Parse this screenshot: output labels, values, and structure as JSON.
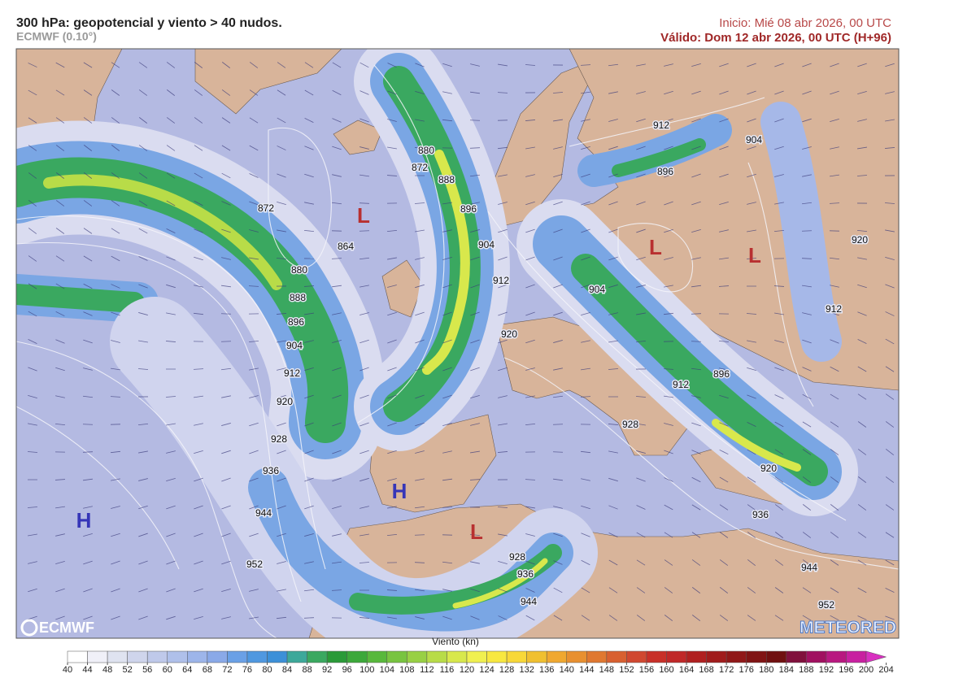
{
  "header": {
    "title": "300 hPa: geopotencial y viento > 40 nudos.",
    "model": "ECMWF (0.10°)",
    "init": "Inicio: Mié 08 abr 2026, 00 UTC",
    "valid": "Válido: Dom 12 abr 2026, 00 UTC (H+96)"
  },
  "map": {
    "pressure_centers": [
      "L",
      "L",
      "L",
      "L",
      "H",
      "H"
    ],
    "contour_labels": [
      "872",
      "864",
      "880",
      "888",
      "896",
      "904",
      "912",
      "920",
      "928",
      "936",
      "944",
      "952",
      "880",
      "872",
      "888",
      "896",
      "904",
      "912",
      "920",
      "912",
      "904",
      "896",
      "920",
      "904",
      "912",
      "912",
      "896",
      "928",
      "920",
      "936",
      "944",
      "952",
      "928",
      "936",
      "944"
    ]
  },
  "colorbar": {
    "title": "Viento (kn)",
    "ticks": [
      40,
      44,
      48,
      52,
      56,
      60,
      64,
      68,
      72,
      76,
      80,
      84,
      88,
      92,
      96,
      100,
      104,
      108,
      112,
      116,
      120,
      124,
      128,
      132,
      136,
      140,
      144,
      148,
      152,
      156,
      160,
      164,
      168,
      172,
      176,
      180,
      184,
      188,
      192,
      196,
      200,
      204
    ],
    "colors": [
      "#ffffff",
      "#f0f0f8",
      "#dfe3f0",
      "#cfd5ec",
      "#bfc9ea",
      "#afc0ea",
      "#9db5ea",
      "#8aa9e8",
      "#6aa0e6",
      "#4f98e0",
      "#3c90d8",
      "#3da89a",
      "#3aa860",
      "#2a9a38",
      "#3ca83a",
      "#58b83c",
      "#78c440",
      "#98d044",
      "#b8dc48",
      "#d8e84c",
      "#f0f050",
      "#f8e840",
      "#f8d838",
      "#f0c030",
      "#f0a830",
      "#e89030",
      "#e07830",
      "#d86030",
      "#d04830",
      "#c83028",
      "#c02828",
      "#b02020",
      "#a01c1c",
      "#901818",
      "#801414",
      "#701010",
      "#80103c",
      "#a01060",
      "#b81880",
      "#c820a0",
      "#d830c0"
    ]
  },
  "logos": {
    "left": "ECMWF",
    "right": "METEORED"
  }
}
